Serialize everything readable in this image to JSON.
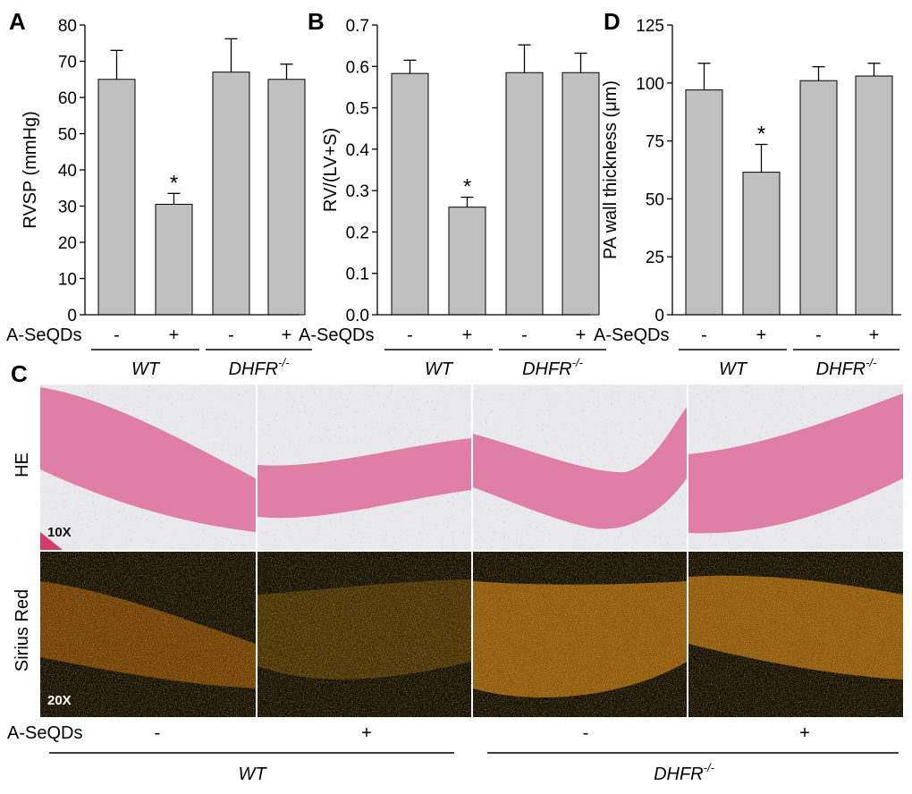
{
  "figure": {
    "treatment_label": "A-SeQDs",
    "minus": "-",
    "plus": "+",
    "group_wt": "WT",
    "group_ko_base": "DHFR",
    "group_ko_sup": "-/-",
    "significance_mark": "*"
  },
  "panel_c": {
    "letter": "C",
    "row_he": "HE",
    "row_sirius": "Sirius Red",
    "mag_he": "10X",
    "mag_sirius": "20X",
    "col_treatment": [
      "-",
      "+",
      "-",
      "+"
    ]
  },
  "colors": {
    "bar_fill": "#c0c0c0",
    "he_tissue": "#e07fa5",
    "he_background": "#e9e9ec",
    "sirius_background": "#0a0806",
    "sirius_fiber": "#e8860e"
  },
  "chart_data": [
    {
      "panel": "A",
      "type": "bar",
      "categories": [
        "WT -",
        "WT +",
        "DHFR-/- -",
        "DHFR-/- +"
      ],
      "values": [
        65,
        30.5,
        67,
        65
      ],
      "errors": [
        8,
        3,
        9.2,
        4.2
      ],
      "significant": [
        false,
        true,
        false,
        false
      ],
      "ylabel": "RVSP (mmHg)",
      "ylim": [
        0,
        80
      ],
      "yticks": [
        "0",
        "10",
        "20",
        "30",
        "40",
        "50",
        "60",
        "70",
        "80"
      ]
    },
    {
      "panel": "B",
      "type": "bar",
      "categories": [
        "WT -",
        "WT +",
        "DHFR-/- -",
        "DHFR-/- +"
      ],
      "values": [
        0.583,
        0.26,
        0.585,
        0.585
      ],
      "errors": [
        0.032,
        0.024,
        0.067,
        0.047
      ],
      "significant": [
        false,
        true,
        false,
        false
      ],
      "ylabel": "RV/(LV+S)",
      "ylim": [
        0,
        0.7
      ],
      "yticks": [
        "0.0",
        "0.1",
        "0.2",
        "0.3",
        "0.4",
        "0.5",
        "0.6",
        "0.7"
      ]
    },
    {
      "panel": "D",
      "type": "bar",
      "categories": [
        "WT -",
        "WT +",
        "DHFR-/- -",
        "DHFR-/- +"
      ],
      "values": [
        97,
        61.5,
        101,
        103
      ],
      "errors": [
        11.5,
        12,
        6,
        5.5
      ],
      "significant": [
        false,
        true,
        false,
        false
      ],
      "ylabel": "PA wall thickness (μm)",
      "ylim": [
        0,
        125
      ],
      "yticks": [
        "0",
        "25",
        "50",
        "75",
        "100",
        "125"
      ]
    }
  ]
}
